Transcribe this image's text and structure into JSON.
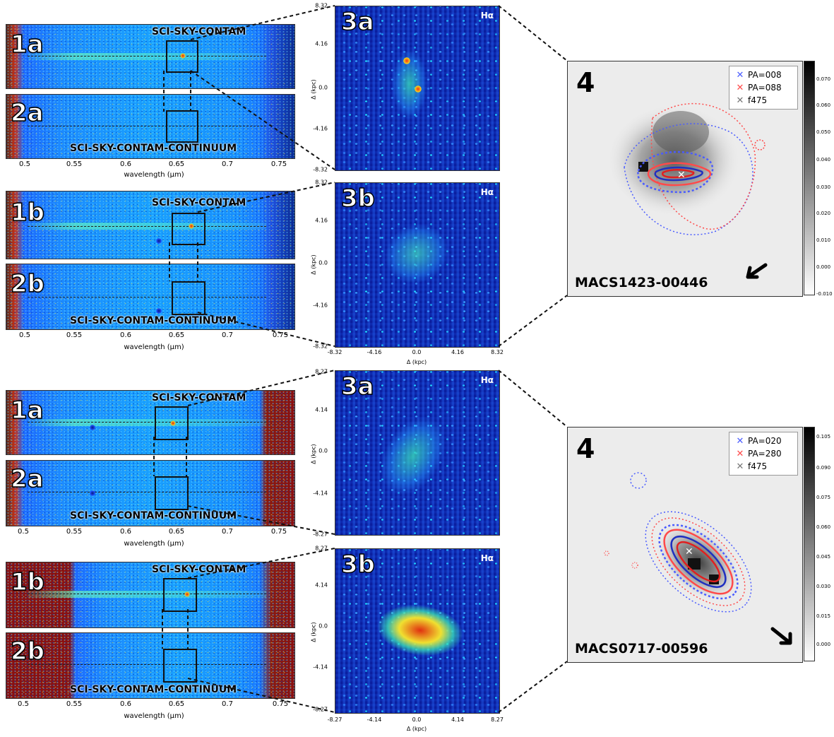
{
  "spectra": [
    {
      "id": "1a",
      "label": "SCI-SKY-CONTAM"
    },
    {
      "id": "2a",
      "label": "SCI-SKY-CONTAM-CONTINUUM"
    },
    {
      "id": "1b",
      "label": "SCI-SKY-CONTAM"
    },
    {
      "id": "2b",
      "label": "SCI-SKY-CONTAM-CONTINUUM"
    },
    {
      "id": "1a",
      "label": "SCI-SKY-CONTAM"
    },
    {
      "id": "2a",
      "label": "SCI-SKY-CONTAM-CONTINUUM"
    },
    {
      "id": "1b",
      "label": "SCI-SKY-CONTAM"
    },
    {
      "id": "2b",
      "label": "SCI-SKY-CONTAM-CONTINUUM"
    }
  ],
  "wave_ticks": [
    "0.5",
    "0.55",
    "0.6",
    "0.65",
    "0.7",
    "0.75"
  ],
  "wave_label": "wavelength (μm)",
  "stamps": [
    {
      "id": "3a",
      "line": "Hα",
      "ticks": [
        "8.32",
        "4.16",
        "0.0",
        "-4.16",
        "-8.32"
      ]
    },
    {
      "id": "3b",
      "line": "Hα",
      "ticks": [
        "8.32",
        "4.16",
        "0.0",
        "-4.16",
        "-8.32"
      ],
      "xticks": [
        "-8.32",
        "-4.16",
        "0.0",
        "4.16",
        "8.32"
      ]
    },
    {
      "id": "3a",
      "line": "Hα",
      "ticks": [
        "8.27",
        "4.14",
        "0.0",
        "-4.14",
        "-8.27"
      ]
    },
    {
      "id": "3b",
      "line": "Hα",
      "ticks": [
        "8.27",
        "4.14",
        "0.0",
        "-4.14",
        "-8.27"
      ],
      "xticks": [
        "-8.27",
        "-4.14",
        "0.0",
        "4.14",
        "8.27"
      ]
    }
  ],
  "stamp_axis_label": "Δ (kpc)",
  "panels4": [
    {
      "id": "4",
      "name": "MACS1423-00446",
      "legend": [
        "PA=008",
        "PA=088",
        "f475"
      ],
      "cbar": [
        "0.070",
        "0.060",
        "0.050",
        "0.040",
        "0.030",
        "0.020",
        "0.010",
        "0.000",
        "-0.010"
      ]
    },
    {
      "id": "4",
      "name": "MACS0717-00596",
      "legend": [
        "PA=020",
        "PA=280",
        "f475"
      ],
      "cbar": [
        "0.105",
        "0.090",
        "0.075",
        "0.060",
        "0.045",
        "0.030",
        "0.015",
        "0.000"
      ]
    }
  ],
  "colors": {
    "pa_a": "#4a5cff",
    "pa_b": "#ff4a4a",
    "f475": "#777777"
  }
}
